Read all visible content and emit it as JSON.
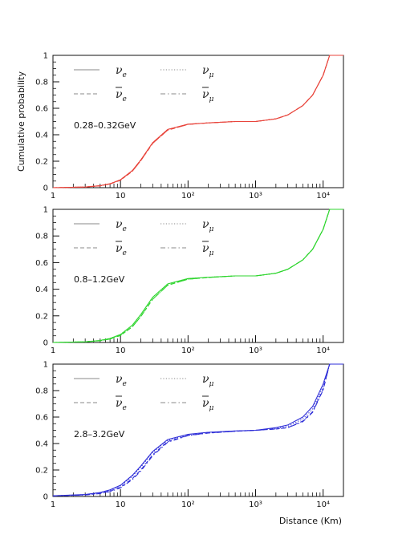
{
  "chart_data": [
    {
      "type": "line",
      "energy_label": "0.28–0.32GeV",
      "color": "#e8453c",
      "ylabel": "Cumulative probability",
      "xlabel": "",
      "xscale": "log",
      "xlim": [
        1,
        20000
      ],
      "ylim": [
        0,
        1
      ],
      "yticks": [
        "0",
        "0.2",
        "0.4",
        "0.6",
        "0.8",
        "1"
      ],
      "xticks": [
        "1",
        "10",
        "10²",
        "10³",
        "10⁴"
      ],
      "legend": [
        {
          "label": "ν",
          "sub": "e",
          "bar": false,
          "style": "solid"
        },
        {
          "label": "ν",
          "sub": "μ",
          "bar": false,
          "style": "dotted"
        },
        {
          "label": "ν",
          "sub": "e",
          "bar": true,
          "style": "dashed"
        },
        {
          "label": "ν",
          "sub": "μ",
          "bar": true,
          "style": "dashdot"
        }
      ],
      "series": [
        {
          "style": "solid",
          "x": [
            1,
            3,
            5,
            7,
            10,
            15,
            20,
            30,
            50,
            100,
            200,
            500,
            1000,
            2000,
            3000,
            5000,
            7000,
            10000,
            12500,
            20000
          ],
          "y": [
            0.0,
            0.005,
            0.015,
            0.03,
            0.06,
            0.13,
            0.21,
            0.34,
            0.44,
            0.48,
            0.49,
            0.5,
            0.5,
            0.52,
            0.55,
            0.62,
            0.7,
            0.85,
            1.0,
            1.0
          ]
        },
        {
          "style": "dotted",
          "x": [
            1,
            3,
            5,
            7,
            10,
            15,
            20,
            30,
            50,
            100,
            200,
            500,
            1000,
            2000,
            3000,
            5000,
            7000,
            10000,
            12500,
            20000
          ],
          "y": [
            0.0,
            0.005,
            0.015,
            0.03,
            0.06,
            0.13,
            0.21,
            0.34,
            0.44,
            0.48,
            0.49,
            0.5,
            0.5,
            0.52,
            0.55,
            0.62,
            0.7,
            0.85,
            1.0,
            1.0
          ]
        },
        {
          "style": "dashed",
          "x": [
            1,
            3,
            5,
            7,
            10,
            15,
            20,
            30,
            50,
            100,
            200,
            500,
            1000,
            2000,
            3000,
            5000,
            7000,
            10000,
            12500,
            20000
          ],
          "y": [
            0.0,
            0.005,
            0.014,
            0.028,
            0.057,
            0.125,
            0.205,
            0.335,
            0.435,
            0.478,
            0.49,
            0.5,
            0.5,
            0.52,
            0.55,
            0.62,
            0.7,
            0.85,
            1.0,
            1.0
          ]
        },
        {
          "style": "dashdot",
          "x": [
            1,
            3,
            5,
            7,
            10,
            15,
            20,
            30,
            50,
            100,
            200,
            500,
            1000,
            2000,
            3000,
            5000,
            7000,
            10000,
            12500,
            20000
          ],
          "y": [
            0.0,
            0.005,
            0.014,
            0.028,
            0.057,
            0.125,
            0.205,
            0.335,
            0.435,
            0.478,
            0.49,
            0.5,
            0.5,
            0.52,
            0.55,
            0.62,
            0.7,
            0.85,
            1.0,
            1.0
          ]
        }
      ]
    },
    {
      "type": "line",
      "energy_label": "0.8–1.2GeV",
      "color": "#2fd52f",
      "ylabel": "",
      "xlabel": "",
      "xscale": "log",
      "xlim": [
        1,
        20000
      ],
      "ylim": [
        0,
        1
      ],
      "yticks": [
        "0",
        "0.2",
        "0.4",
        "0.6",
        "0.8",
        "1"
      ],
      "xticks": [
        "1",
        "10",
        "10²",
        "10³",
        "10⁴"
      ],
      "legend": [
        {
          "label": "ν",
          "sub": "e",
          "bar": false,
          "style": "solid"
        },
        {
          "label": "ν",
          "sub": "μ",
          "bar": false,
          "style": "dotted"
        },
        {
          "label": "ν",
          "sub": "e",
          "bar": true,
          "style": "dashed"
        },
        {
          "label": "ν",
          "sub": "μ",
          "bar": true,
          "style": "dashdot"
        }
      ],
      "series": [
        {
          "style": "solid",
          "x": [
            1,
            3,
            5,
            7,
            10,
            15,
            20,
            30,
            50,
            100,
            200,
            500,
            1000,
            2000,
            3000,
            5000,
            7000,
            10000,
            12500,
            20000
          ],
          "y": [
            0.0,
            0.005,
            0.015,
            0.03,
            0.06,
            0.13,
            0.21,
            0.34,
            0.44,
            0.48,
            0.49,
            0.5,
            0.5,
            0.52,
            0.55,
            0.62,
            0.7,
            0.85,
            1.0,
            1.0
          ]
        },
        {
          "style": "dotted",
          "x": [
            1,
            3,
            5,
            7,
            10,
            15,
            20,
            30,
            50,
            100,
            200,
            500,
            1000,
            2000,
            3000,
            5000,
            7000,
            10000,
            12500,
            20000
          ],
          "y": [
            0.0,
            0.005,
            0.015,
            0.03,
            0.06,
            0.13,
            0.21,
            0.34,
            0.44,
            0.48,
            0.49,
            0.5,
            0.5,
            0.52,
            0.55,
            0.62,
            0.7,
            0.85,
            1.0,
            1.0
          ]
        },
        {
          "style": "dashed",
          "x": [
            1,
            3,
            5,
            7,
            10,
            15,
            20,
            30,
            50,
            100,
            200,
            500,
            1000,
            2000,
            3000,
            5000,
            7000,
            10000,
            12500,
            20000
          ],
          "y": [
            0.0,
            0.005,
            0.013,
            0.026,
            0.053,
            0.118,
            0.195,
            0.325,
            0.43,
            0.475,
            0.488,
            0.5,
            0.5,
            0.52,
            0.55,
            0.62,
            0.7,
            0.85,
            1.0,
            1.0
          ]
        },
        {
          "style": "dashdot",
          "x": [
            1,
            3,
            5,
            7,
            10,
            15,
            20,
            30,
            50,
            100,
            200,
            500,
            1000,
            2000,
            3000,
            5000,
            7000,
            10000,
            12500,
            20000
          ],
          "y": [
            0.0,
            0.005,
            0.013,
            0.026,
            0.053,
            0.118,
            0.195,
            0.325,
            0.43,
            0.475,
            0.488,
            0.5,
            0.5,
            0.52,
            0.55,
            0.62,
            0.7,
            0.85,
            1.0,
            1.0
          ]
        }
      ]
    },
    {
      "type": "line",
      "energy_label": "2.8–3.2GeV",
      "color": "#2f2fd8",
      "ylabel": "",
      "xlabel": "Distance (Km)",
      "xscale": "log",
      "xlim": [
        1,
        20000
      ],
      "ylim": [
        0,
        1
      ],
      "yticks": [
        "0",
        "0.2",
        "0.4",
        "0.6",
        "0.8",
        "1"
      ],
      "xticks": [
        "1",
        "10",
        "10²",
        "10³",
        "10⁴"
      ],
      "legend": [
        {
          "label": "ν",
          "sub": "e",
          "bar": false,
          "style": "solid"
        },
        {
          "label": "ν",
          "sub": "μ",
          "bar": false,
          "style": "dotted"
        },
        {
          "label": "ν",
          "sub": "e",
          "bar": true,
          "style": "dashed"
        },
        {
          "label": "ν",
          "sub": "μ",
          "bar": true,
          "style": "dashdot"
        }
      ],
      "series": [
        {
          "style": "solid",
          "x": [
            1,
            3,
            5,
            7,
            10,
            15,
            20,
            30,
            50,
            100,
            200,
            500,
            1000,
            2000,
            3000,
            5000,
            7000,
            10000,
            12500,
            20000
          ],
          "y": [
            0.005,
            0.015,
            0.03,
            0.05,
            0.085,
            0.16,
            0.23,
            0.34,
            0.43,
            0.47,
            0.485,
            0.495,
            0.5,
            0.52,
            0.54,
            0.6,
            0.68,
            0.85,
            1.0,
            1.0
          ]
        },
        {
          "style": "dotted",
          "x": [
            1,
            3,
            5,
            7,
            10,
            15,
            20,
            30,
            50,
            100,
            200,
            500,
            1000,
            2000,
            3000,
            5000,
            7000,
            10000,
            12500,
            20000
          ],
          "y": [
            0.005,
            0.014,
            0.028,
            0.047,
            0.08,
            0.152,
            0.222,
            0.333,
            0.425,
            0.468,
            0.484,
            0.495,
            0.5,
            0.515,
            0.53,
            0.585,
            0.66,
            0.83,
            1.0,
            1.0
          ]
        },
        {
          "style": "dashed",
          "x": [
            1,
            3,
            5,
            7,
            10,
            15,
            20,
            30,
            50,
            100,
            200,
            500,
            1000,
            2000,
            3000,
            5000,
            7000,
            10000,
            12500,
            20000
          ],
          "y": [
            0.004,
            0.012,
            0.024,
            0.04,
            0.07,
            0.135,
            0.2,
            0.315,
            0.415,
            0.462,
            0.48,
            0.493,
            0.5,
            0.51,
            0.52,
            0.57,
            0.64,
            0.81,
            1.0,
            1.0
          ]
        },
        {
          "style": "dashdot",
          "x": [
            1,
            3,
            5,
            7,
            10,
            15,
            20,
            30,
            50,
            100,
            200,
            500,
            1000,
            2000,
            3000,
            5000,
            7000,
            10000,
            12500,
            20000
          ],
          "y": [
            0.004,
            0.011,
            0.022,
            0.037,
            0.065,
            0.128,
            0.192,
            0.308,
            0.41,
            0.46,
            0.479,
            0.493,
            0.5,
            0.51,
            0.52,
            0.565,
            0.635,
            0.805,
            1.0,
            1.0
          ]
        }
      ]
    }
  ]
}
